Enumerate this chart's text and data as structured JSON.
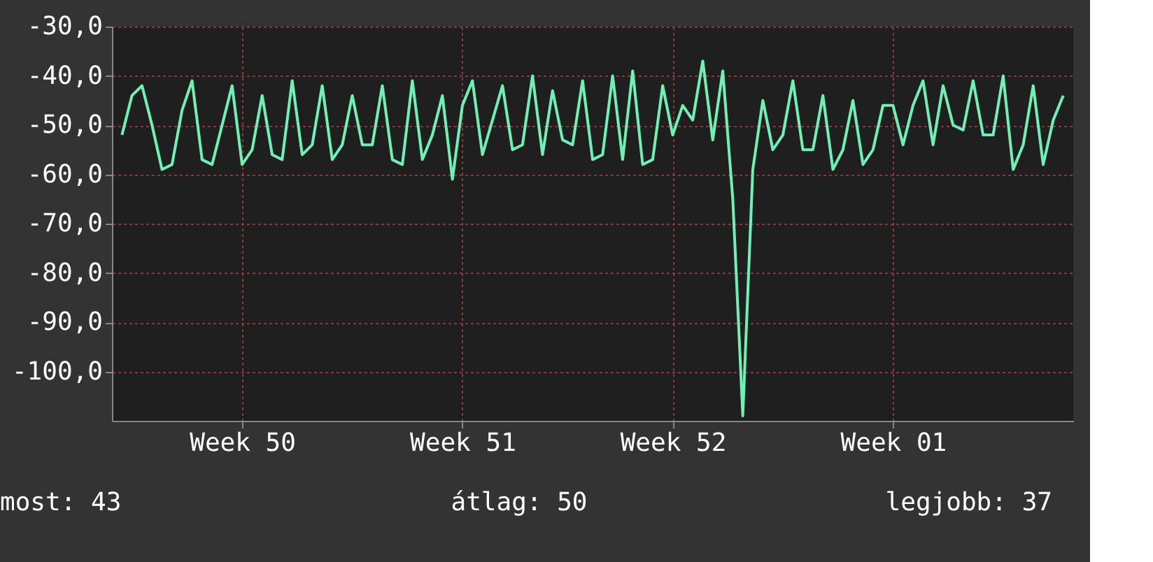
{
  "chart_data": {
    "type": "line",
    "categories": [
      null,
      null,
      null,
      null,
      null,
      null,
      null,
      null,
      null,
      null,
      null,
      null,
      "Week 50",
      null,
      null,
      null,
      null,
      null,
      null,
      null,
      null,
      null,
      null,
      null,
      null,
      null,
      null,
      null,
      null,
      null,
      null,
      null,
      null,
      null,
      "Week 51",
      null,
      null,
      null,
      null,
      null,
      null,
      null,
      null,
      null,
      null,
      null,
      null,
      null,
      null,
      null,
      null,
      null,
      null,
      null,
      null,
      "Week 52",
      null,
      null,
      null,
      null,
      null,
      null,
      null,
      null,
      null,
      null,
      null,
      null,
      null,
      null,
      null,
      null,
      null,
      null,
      null,
      null,
      null,
      "Week 01",
      null,
      null,
      null,
      null,
      null,
      null,
      null,
      null,
      null,
      null,
      null,
      null,
      null,
      null,
      null,
      null,
      null
    ],
    "series": [
      {
        "color": "#6ff0b4",
        "values": [
          -52,
          -44,
          -42,
          -50,
          -59,
          -58,
          -47,
          -41,
          -57,
          -58,
          -50,
          -42,
          -58,
          -55,
          -44,
          -56,
          -57,
          -41,
          -56,
          -54,
          -42,
          -57,
          -54,
          -44,
          -54,
          -54,
          -42,
          -57,
          -58,
          -41,
          -57,
          -52,
          -44,
          -61,
          -46,
          -41,
          -56,
          -49,
          -42,
          -55,
          -54,
          -40,
          -56,
          -43,
          -53,
          -54,
          -41,
          -57,
          -56,
          -40,
          -57,
          -39,
          -58,
          -57,
          -42,
          -52,
          -46,
          -49,
          -37,
          -53,
          -39,
          -65,
          -109,
          -59,
          -45,
          -55,
          -52,
          -41,
          -55,
          -55,
          -44,
          -59,
          -55,
          -45,
          -58,
          -55,
          -46,
          -46,
          -54,
          -46,
          -41,
          -54,
          -42,
          -50,
          -51,
          -41,
          -52,
          -52,
          -40,
          -59,
          -54,
          -42,
          -58,
          -49,
          -44
        ]
      }
    ],
    "ylim": [
      -110,
      -30
    ],
    "yticks": [
      {
        "value": -30,
        "label": "-30,0"
      },
      {
        "value": -40,
        "label": "-40,0"
      },
      {
        "value": -50,
        "label": "-50,0"
      },
      {
        "value": -60,
        "label": "-60,0"
      },
      {
        "value": -70,
        "label": "-70,0"
      },
      {
        "value": -80,
        "label": "-80,0"
      },
      {
        "value": -90,
        "label": "-90,0"
      },
      {
        "value": -100,
        "label": "-100,0"
      }
    ],
    "grid": true,
    "legend": false,
    "annotations": [
      "most: 43",
      "átlag: 50",
      "legjobb: 37"
    ]
  }
}
